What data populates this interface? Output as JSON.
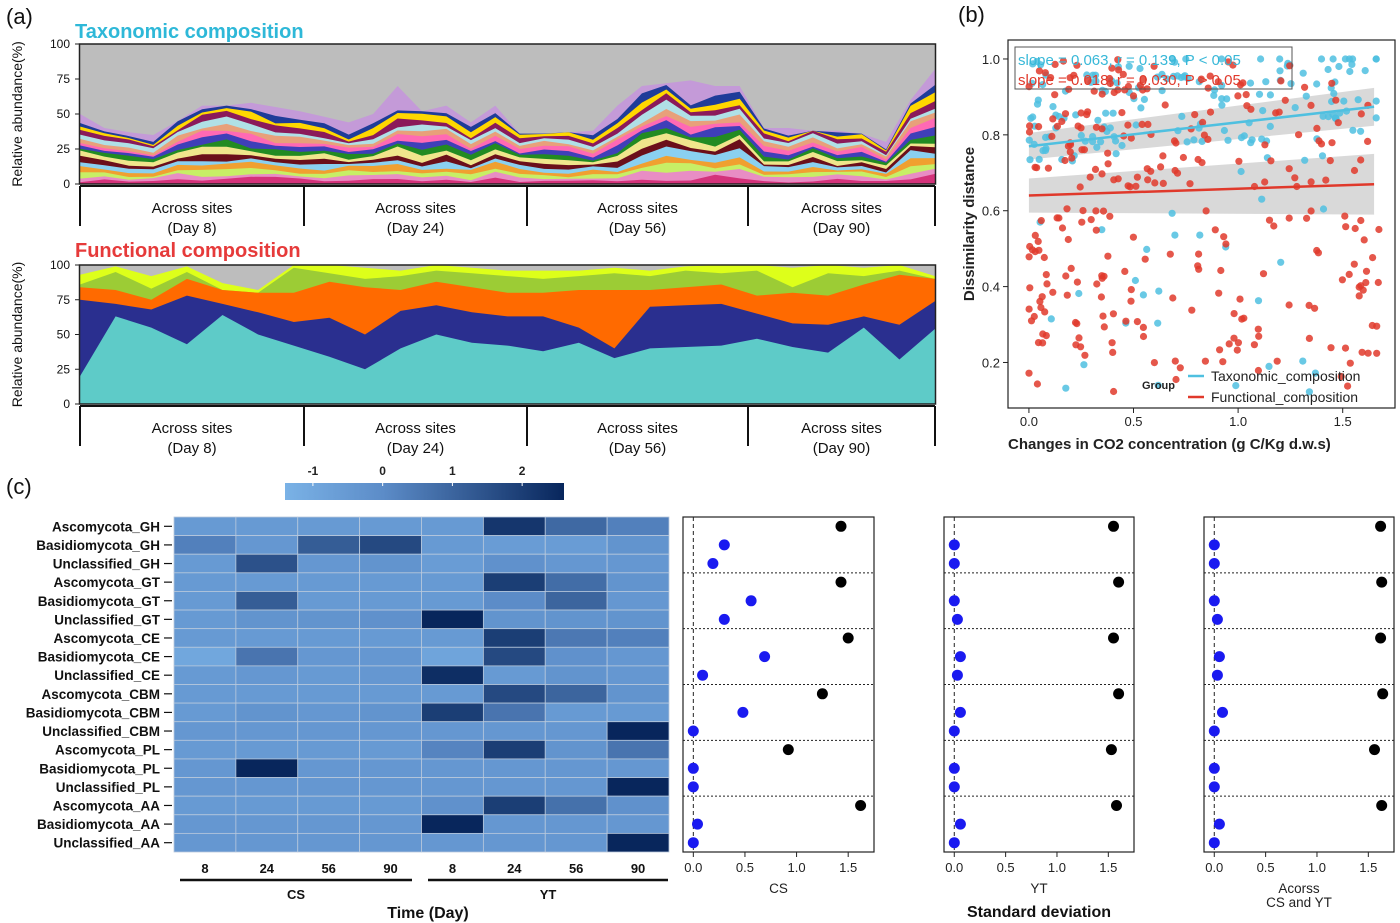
{
  "panels": {
    "a_label": "(a)",
    "b_label": "(b)",
    "c_label": "(c)"
  },
  "chart_data": [
    {
      "id": "taxonomic",
      "type": "area",
      "title": "Taxonomic composition",
      "title_color": "#2eb8d8",
      "ylabel": "Relative abundance(%)",
      "ylim": [
        0,
        100
      ],
      "yticks": [
        "0",
        "25",
        "50",
        "75",
        "100"
      ],
      "groups": [
        {
          "line1": "Across sites",
          "line2": "(Day 8)"
        },
        {
          "line1": "Across sites",
          "line2": "(Day 24)"
        },
        {
          "line1": "Across sites",
          "line2": "(Day 56)"
        },
        {
          "line1": "Across sites",
          "line2": "(Day 90)"
        }
      ],
      "n_samples": 36,
      "stack_colors": [
        "#d4327a",
        "#e88dc4",
        "#c7ef66",
        "#f0a030",
        "#8ad0f0",
        "#6b0f1a",
        "#f0e68c",
        "#228b22",
        "#3f3fb8",
        "#ff69b4",
        "#e8a07a",
        "#b0e0e6",
        "#8b1a5a",
        "#ffd700",
        "#1f3c99",
        "#c49ad8"
      ],
      "background_color": "#bdbdbd",
      "total_top": [
        50,
        40,
        37,
        35,
        45,
        56,
        56,
        58,
        55,
        52,
        48,
        44,
        50,
        70,
        52,
        56,
        44,
        56,
        36,
        36,
        37,
        38,
        56,
        70,
        72,
        74,
        70,
        70,
        40,
        40,
        38,
        38,
        36,
        30,
        60,
        82
      ]
    },
    {
      "id": "functional",
      "type": "area",
      "title": "Functional composition",
      "title_color": "#e63a3a",
      "ylabel": "Relative abundance(%)",
      "ylim": [
        0,
        100
      ],
      "yticks": [
        "0",
        "25",
        "50",
        "75",
        "100"
      ],
      "groups": [
        {
          "line1": "Across sites",
          "line2": "(Day 8)"
        },
        {
          "line1": "Across sites",
          "line2": "(Day 24)"
        },
        {
          "line1": "Across sites",
          "line2": "(Day 56)"
        },
        {
          "line1": "Across sites",
          "line2": "(Day 90)"
        }
      ],
      "series": [
        {
          "color": "#5ecbc8",
          "values": [
            20,
            63,
            55,
            43,
            64,
            50,
            42,
            34,
            25,
            40,
            50,
            44,
            42,
            38,
            44,
            33,
            40,
            41,
            42,
            47,
            41,
            37,
            55,
            32,
            54
          ]
        },
        {
          "color": "#2a2f8f",
          "values": [
            75,
            72,
            68,
            78,
            72,
            66,
            59,
            62,
            50,
            67,
            71,
            66,
            63,
            63,
            55,
            40,
            70,
            71,
            72,
            65,
            58,
            57,
            63,
            57,
            74
          ]
        },
        {
          "color": "#ff6a00",
          "values": [
            84,
            82,
            75,
            90,
            82,
            80,
            80,
            88,
            84,
            82,
            88,
            84,
            80,
            80,
            82,
            82,
            82,
            84,
            86,
            78,
            80,
            78,
            86,
            93,
            90
          ]
        },
        {
          "color": "#9ccc35",
          "values": [
            86,
            95,
            83,
            95,
            82,
            80,
            98,
            94,
            90,
            92,
            96,
            94,
            92,
            90,
            92,
            94,
            92,
            96,
            94,
            96,
            84,
            94,
            92,
            96,
            90
          ]
        },
        {
          "color": "#ddff1a",
          "values": [
            93,
            99,
            92,
            99,
            87,
            82,
            100,
            100,
            98,
            96,
            100,
            98,
            96,
            96,
            96,
            98,
            96,
            99,
            100,
            100,
            98,
            100,
            98,
            100,
            92
          ]
        }
      ],
      "background_color": "#bdbdbd"
    },
    {
      "id": "scatter",
      "type": "scatter",
      "xlabel": "Changes in CO2 concentration (g C/Kg d.w.s)",
      "ylabel": "Dissimilarity distance",
      "xlim": [
        -0.1,
        1.75
      ],
      "ylim": [
        0.08,
        1.05
      ],
      "xticks": [
        "0.0",
        "0.5",
        "1.0",
        "1.5"
      ],
      "yticks": [
        "0.2",
        "0.4",
        "0.6",
        "0.8",
        "1.0"
      ],
      "annotations": [
        {
          "text": "slope = 0.063, r = 0.139, P < 0.05",
          "color": "#38b8d8"
        },
        {
          "text": "slope = 0.018, r = 0.030, P > 0.05",
          "color": "#e0392b"
        }
      ],
      "legend_title": "Group",
      "legend_position": "bottom-right",
      "series": [
        {
          "name": "Taxonomic_composition",
          "color": "#4fc0e0",
          "fit": {
            "slope": 0.063,
            "intercept": 0.77,
            "x": [
              0.0,
              1.65
            ]
          }
        },
        {
          "name": "Functional_composition",
          "color": "#e0392b",
          "fit": {
            "slope": 0.018,
            "intercept": 0.64,
            "x": [
              0.0,
              1.65
            ]
          }
        }
      ]
    },
    {
      "id": "heatmap",
      "type": "heatmap",
      "colorbar_ticks": [
        "-1",
        "0",
        "1",
        "2"
      ],
      "colorbar_range": [
        -1.4,
        2.6
      ],
      "rows": [
        "Ascomycota_GH",
        "Basidiomycota_GH",
        "Unclassified_GH",
        "Ascomycota_GT",
        "Basidiomycota_GT",
        "Unclassified_GT",
        "Ascomycota_CE",
        "Basidiomycota_CE",
        "Unclassified_CE",
        "Ascomycota_CBM",
        "Basidiomycota_CBM",
        "Unclassified_CBM",
        "Ascomycota_PL",
        "Basidiomycota_PL",
        "Unclassified_PL",
        "Ascomycota_AA",
        "Basidiomycota_AA",
        "Unclassified_AA"
      ],
      "columns": [
        "8",
        "24",
        "56",
        "90",
        "8",
        "24",
        "56",
        "90"
      ],
      "column_groups": [
        {
          "label": "CS"
        },
        {
          "label": "YT"
        }
      ],
      "xlabel": "Time (Day)",
      "values": [
        [
          -0.5,
          -0.5,
          -0.5,
          -0.5,
          -0.5,
          2.2,
          0.9,
          0.3
        ],
        [
          0.3,
          -0.4,
          1.2,
          1.7,
          -0.5,
          -0.6,
          -0.6,
          -0.3
        ],
        [
          -0.5,
          1.5,
          -0.4,
          -0.3,
          -0.6,
          -0.2,
          -0.4,
          -0.4
        ],
        [
          -0.5,
          -0.5,
          -0.5,
          -0.5,
          -0.5,
          2.0,
          0.8,
          -0.3
        ],
        [
          -0.5,
          1.2,
          -0.5,
          -0.5,
          -0.5,
          0.0,
          1.0,
          -0.4
        ],
        [
          -0.5,
          -0.3,
          -0.3,
          -0.2,
          2.6,
          -0.3,
          -0.3,
          -0.3
        ],
        [
          -0.5,
          -0.5,
          -0.5,
          -0.5,
          -0.5,
          2.0,
          0.5,
          0.3
        ],
        [
          -1.0,
          0.6,
          -0.4,
          -0.4,
          -0.9,
          1.7,
          -0.2,
          -0.4
        ],
        [
          -0.5,
          -0.4,
          -0.5,
          -0.4,
          2.4,
          -0.5,
          -0.3,
          -0.4
        ],
        [
          -0.5,
          -0.5,
          -0.5,
          -0.5,
          -0.5,
          1.7,
          1.0,
          -0.3
        ],
        [
          -0.5,
          -0.3,
          -0.4,
          -0.3,
          2.0,
          0.6,
          -0.5,
          -0.5
        ],
        [
          -0.4,
          -0.4,
          -0.4,
          -0.4,
          -0.4,
          -0.4,
          -0.4,
          2.6
        ],
        [
          -0.5,
          -0.5,
          -0.5,
          -0.5,
          0.2,
          2.0,
          -0.3,
          0.6
        ],
        [
          -0.4,
          2.6,
          -0.4,
          -0.4,
          -0.4,
          -0.4,
          -0.4,
          -0.4
        ],
        [
          -0.4,
          -0.4,
          -0.4,
          -0.4,
          -0.4,
          -0.4,
          -0.4,
          2.6
        ],
        [
          -0.5,
          -0.5,
          -0.5,
          -0.5,
          -0.2,
          2.0,
          0.7,
          -0.2
        ],
        [
          -0.4,
          -0.4,
          -0.4,
          -0.4,
          2.6,
          -0.4,
          -0.4,
          -0.4
        ],
        [
          -0.4,
          -0.4,
          -0.4,
          -0.4,
          -0.4,
          -0.4,
          -0.4,
          2.6
        ]
      ]
    },
    {
      "id": "sd_panels",
      "type": "scatter",
      "xlim": [
        -0.1,
        1.75
      ],
      "xticks": [
        "0.0",
        "0.5",
        "1.0",
        "1.5"
      ],
      "shared_xlabel": "Standard deviation",
      "colors": {
        "black": "#000000",
        "blue": "#1a1af0"
      },
      "panels": [
        {
          "label_lines": [
            "CS"
          ],
          "values": [
            1.43,
            0.3,
            0.19,
            1.43,
            0.56,
            0.3,
            1.5,
            0.69,
            0.09,
            1.25,
            0.48,
            0.0,
            0.92,
            0.0,
            0.0,
            1.62,
            0.04,
            0.0
          ]
        },
        {
          "label_lines": [
            "YT"
          ],
          "values": [
            1.55,
            0.0,
            0.0,
            1.6,
            0.0,
            0.03,
            1.55,
            0.06,
            0.03,
            1.6,
            0.06,
            0.0,
            1.53,
            0.0,
            0.0,
            1.58,
            0.06,
            0.0
          ]
        },
        {
          "label_lines": [
            "Acorss",
            "CS and YT"
          ],
          "values": [
            1.62,
            0.0,
            0.0,
            1.63,
            0.0,
            0.03,
            1.62,
            0.05,
            0.03,
            1.64,
            0.08,
            0.0,
            1.56,
            0.0,
            0.0,
            1.63,
            0.05,
            0.0
          ]
        }
      ]
    }
  ]
}
